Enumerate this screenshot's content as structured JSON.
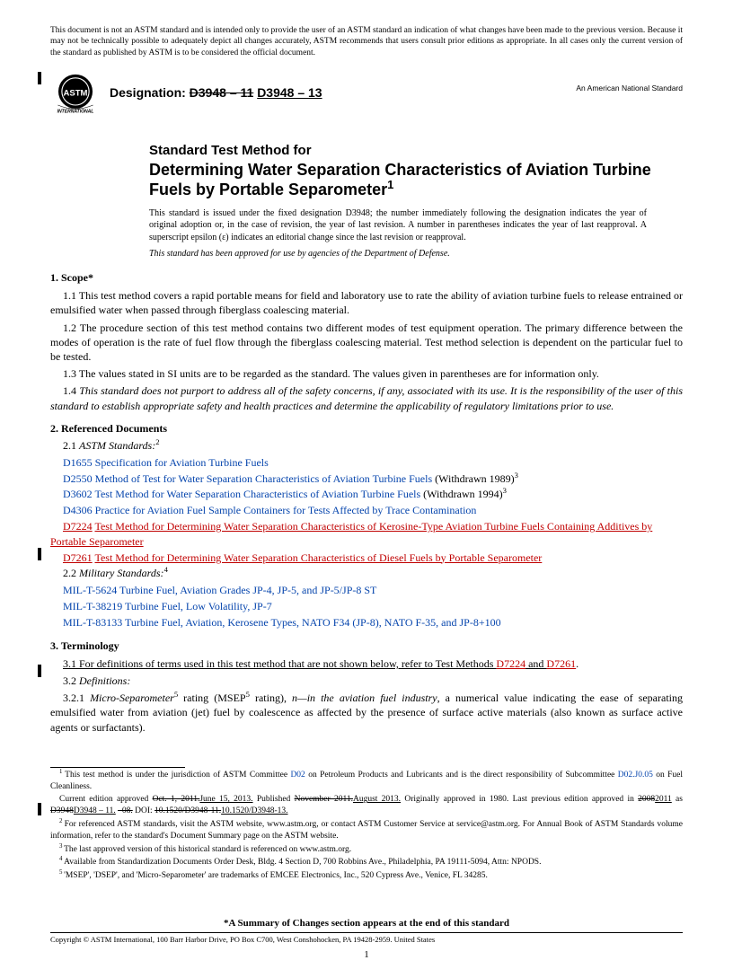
{
  "disclaimer": "This document is not an ASTM standard and is intended only to provide the user of an ASTM standard an indication of what changes have been made to the previous version. Because it may not be technically possible to adequately depict all changes accurately, ASTM recommends that users consult prior editions as appropriate. In all cases only the current version of the standard as published by ASTM is to be considered the official document.",
  "header": {
    "designation_label": "Designation:",
    "designation_old": "D3948 – 11",
    "designation_new": "D3948 – 13",
    "national_standard": "An American National Standard"
  },
  "title": {
    "upper": "Standard Test Method for",
    "main": "Determining Water Separation Characteristics of Aviation Turbine Fuels by Portable Separometer",
    "sup": "1"
  },
  "issue_note": "This standard is issued under the fixed designation D3948; the number immediately following the designation indicates the year of original adoption or, in the case of revision, the year of last revision. A number in parentheses indicates the year of last reapproval. A superscript epsilon (ε) indicates an editorial change since the last revision or reapproval.",
  "dod_note": "This standard has been approved for use by agencies of the Department of Defense.",
  "scope": {
    "head": "1. Scope*",
    "p11": "1.1 This test method covers a rapid portable means for field and laboratory use to rate the ability of aviation turbine fuels to release entrained or emulsified water when passed through fiberglass coalescing material.",
    "p12": "1.2 The procedure section of this test method contains two different modes of test equipment operation. The primary difference between the modes of operation is the rate of fuel flow through the fiberglass coalescing material. Test method selection is dependent on the particular fuel to be tested.",
    "p13": "1.3 The values stated in SI units are to be regarded as the standard. The values given in parentheses are for information only.",
    "p14": "1.4 This standard does not purport to address all of the safety concerns, if any, associated with its use. It is the responsibility of the user of this standard to establish appropriate safety and health practices and determine the applicability of regulatory limitations prior to use."
  },
  "refs": {
    "head": "2. Referenced Documents",
    "astm_label": "2.1 ASTM Standards:",
    "astm_sup": "2",
    "d1655_id": "D1655",
    "d1655_txt": "Specification for Aviation Turbine Fuels",
    "d2550_id": "D2550",
    "d2550_txt": "Method of Test for Water Separation Characteristics of Aviation Turbine Fuels",
    "d2550_wd": " (Withdrawn 1989)",
    "wd_sup3": "3",
    "d3602_id": "D3602",
    "d3602_txt": "Test Method for Water Separation Characteristics of Aviation Turbine Fuels",
    "d3602_wd": " (Withdrawn 1994)",
    "d4306_id": "D4306",
    "d4306_txt": "Practice for Aviation Fuel Sample Containers for Tests Affected by Trace Contamination",
    "d7224_id": "D7224",
    "d7224_txt": "Test Method for Determining Water Separation Characteristics of Kerosine-Type Aviation Turbine Fuels Containing Additives by Portable Separometer",
    "d7261_id": "D7261",
    "d7261_txt": "Test Method for Determining Water Separation Characteristics of Diesel Fuels by Portable Separometer",
    "mil_label": "2.2 Military Standards:",
    "mil_sup": "4",
    "m1_id": "MIL-T-5624",
    "m1_txt": "Turbine Fuel, Aviation Grades JP-4, JP-5, and JP-5/JP-8 ST",
    "m2_id": "MIL-T-38219",
    "m2_txt": "Turbine Fuel, Low Volatility, JP-7",
    "m3_id": "MIL-T-83133",
    "m3_txt": "Turbine Fuel, Aviation, Kerosene Types, NATO F34 (JP-8), NATO F-35, and JP-8+100"
  },
  "term": {
    "head": "3. Terminology",
    "p31_a": "3.1 For definitions of terms used in this test method that are not shown below, refer to Test Methods ",
    "p31_d7224": "D7224",
    "p31_and": " and ",
    "p31_d7261": "D7261",
    "p31_dot": ".",
    "p32": "3.2 Definitions:",
    "p321_a": "3.2.1 ",
    "p321_term": "Micro-Separometer",
    "p321_sup5": "5",
    "p321_b": " rating (MSEP",
    "p321_b2": " rating), ",
    "p321_domain": "n—in the aviation fuel industry",
    "p321_c": ", a numerical value indicating the ease of separating emulsified water from aviation (jet) fuel by coalescence as affected by the presence of surface active materials (also known as surface active agents or surfactants)."
  },
  "footnotes": {
    "f1a": "This test method is under the jurisdiction of ASTM Committee ",
    "f1_d02": "D02",
    "f1b": " on Petroleum Products and Lubricants and is the direct responsibility of Subcommittee ",
    "f1_sub": "D02.J0.05",
    "f1c": " on Fuel Cleanliness.",
    "f1_cur_a": "Current edition approved ",
    "f1_cur_old1": "Oct. 1, 2011.",
    "f1_cur_new1": "June 15, 2013.",
    "f1_cur_b": " Published ",
    "f1_cur_old2": "November 2011.",
    "f1_cur_new2": "August 2013.",
    "f1_cur_c": " Originally approved in 1980. Last previous edition approved in ",
    "f1_cur_old3": "2008",
    "f1_cur_new3": "2011",
    "f1_cur_d": " as ",
    "f1_cur_old4": "D3948",
    "f1_cur_new4": "D3948 – 11.",
    "f1_cur_old5": "–08.",
    "f1_cur_e": " DOI: ",
    "f1_cur_old6": "10.1520/D3948-11.",
    "f1_cur_new6": "10.1520/D3948-13.",
    "f2": "For referenced ASTM standards, visit the ASTM website, www.astm.org, or contact ASTM Customer Service at service@astm.org. For Annual Book of ASTM Standards volume information, refer to the standard's Document Summary page on the ASTM website.",
    "f3": "The last approved version of this historical standard is referenced on www.astm.org.",
    "f4": "Available from Standardization Documents Order Desk, Bldg. 4 Section D, 700 Robbins Ave., Philadelphia, PA 19111-5094, Attn: NPODS.",
    "f5": "'MSEP', 'DSEP', and 'Micro-Separometer' are trademarks of EMCEE Electronics, Inc., 520 Cypress Ave., Venice, FL 34285."
  },
  "summary": "*A Summary of Changes section appears at the end of this standard",
  "copyright": "Copyright © ASTM International, 100 Barr Harbor Drive, PO Box C700, West Conshohocken, PA 19428-2959. United States",
  "page_num": "1"
}
